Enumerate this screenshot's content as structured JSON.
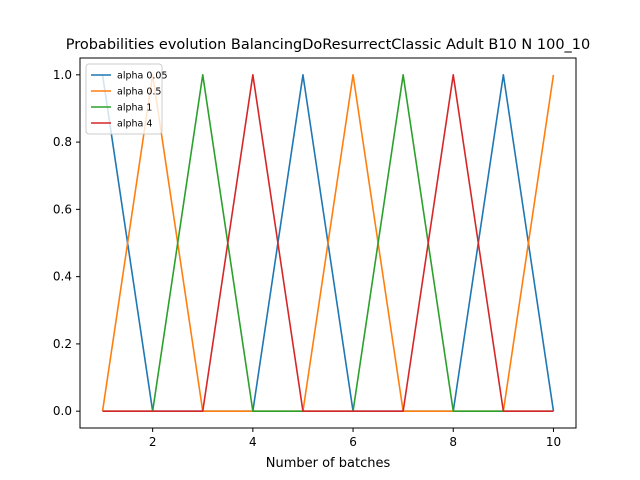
{
  "chart_data": {
    "type": "line",
    "title": "Probabilities evolution BalancingDoResurrectClassic Adult B10 N 100_10",
    "xlabel": "Number of batches",
    "ylabel": "",
    "x": [
      1,
      2,
      3,
      4,
      5,
      6,
      7,
      8,
      9,
      10
    ],
    "xlim": [
      0.55,
      10.45
    ],
    "ylim": [
      -0.05,
      1.05
    ],
    "xticks": [
      2,
      4,
      6,
      8,
      10
    ],
    "yticks": [
      0.0,
      0.2,
      0.4,
      0.6,
      0.8,
      1.0
    ],
    "xtick_labels": [
      "2",
      "4",
      "6",
      "8",
      "10"
    ],
    "ytick_labels": [
      "0.0",
      "0.2",
      "0.4",
      "0.6",
      "0.8",
      "1.0"
    ],
    "grid": false,
    "legend_position": "upper left",
    "series": [
      {
        "name": "alpha 0.05",
        "color": "#1f77b4",
        "values": [
          1,
          0,
          0,
          0,
          1,
          0,
          0,
          0,
          1,
          0
        ]
      },
      {
        "name": "alpha 0.5",
        "color": "#ff7f0e",
        "values": [
          0,
          1,
          0,
          0,
          0,
          1,
          0,
          0,
          0,
          1
        ]
      },
      {
        "name": "alpha 1",
        "color": "#2ca02c",
        "values": [
          0,
          0,
          1,
          0,
          0,
          0,
          1,
          0,
          0,
          0
        ]
      },
      {
        "name": "alpha 4",
        "color": "#d62728",
        "values": [
          0,
          0,
          0,
          1,
          0,
          0,
          0,
          1,
          0,
          0
        ]
      }
    ]
  }
}
